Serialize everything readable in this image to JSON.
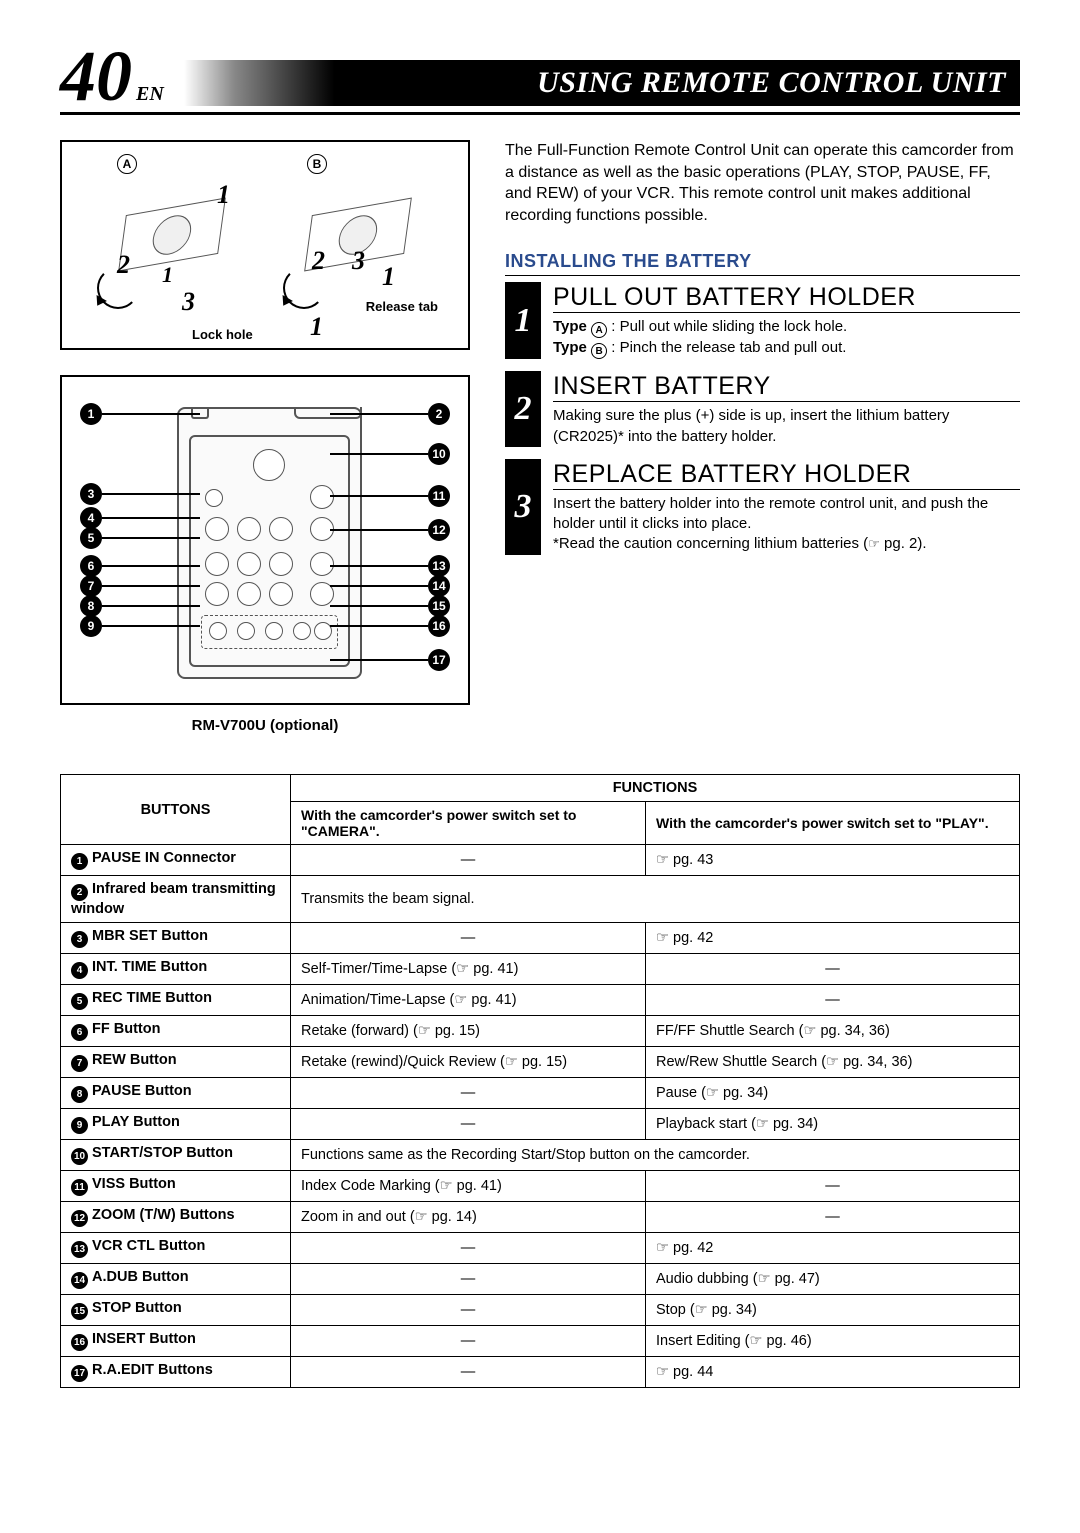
{
  "page_number": "40",
  "lang_tag": "EN",
  "banner_title": "USING REMOTE CONTROL UNIT",
  "model": "RM-V700U (optional)",
  "intro": "The Full-Function Remote Control Unit can operate this camcorder from a distance as well as the basic operations (PLAY, STOP, PAUSE, FF, and REW) of your VCR. This remote control unit makes additional recording functions possible.",
  "section_head": "INSTALLING THE BATTERY",
  "steps": [
    {
      "num": "1",
      "title": "PULL OUT BATTERY HOLDER",
      "text_parts": [
        {
          "b": true,
          "t": "Type "
        },
        {
          "circ": "A"
        },
        {
          "t": " : Pull out while sliding the lock hole."
        },
        {
          "br": true
        },
        {
          "b": true,
          "t": "Type "
        },
        {
          "circ": "B"
        },
        {
          "t": " : Pinch the release tab and pull out."
        }
      ]
    },
    {
      "num": "2",
      "title": "INSERT BATTERY",
      "text_parts": [
        {
          "t": "Making sure the plus (+) side is up, insert the lithium battery (CR2025)* into the battery holder."
        }
      ]
    },
    {
      "num": "3",
      "title": "REPLACE BATTERY HOLDER",
      "text_parts": [
        {
          "t": "Insert the battery holder into the remote control unit, and push the holder until it clicks into place."
        },
        {
          "br": true
        },
        {
          "t": "*Read the caution concerning lithium batteries ("
        },
        {
          "see": true
        },
        {
          "t": " pg. 2)."
        }
      ]
    }
  ],
  "top_diagram": {
    "ids": [
      "A",
      "B"
    ],
    "lock_label": "Lock hole",
    "release_label": "Release tab",
    "step_nums": [
      "1",
      "2",
      "3"
    ]
  },
  "callouts_left": [
    "1",
    "3",
    "4",
    "5",
    "6",
    "7",
    "8",
    "9"
  ],
  "callouts_right": [
    "2",
    "10",
    "11",
    "12",
    "13",
    "14",
    "15",
    "16",
    "17"
  ],
  "table": {
    "header_buttons": "BUTTONS",
    "header_functions": "FUNCTIONS",
    "sub_camera": "With the camcorder's power switch set to \"CAMERA\".",
    "sub_play": "With the camcorder's power switch set to \"PLAY\".",
    "rows": [
      {
        "n": "1",
        "name": "PAUSE IN Connector",
        "cam": "—",
        "play": "☞ pg. 43"
      },
      {
        "n": "2",
        "name": "Infrared beam transmitting window",
        "span": "Transmits the beam signal."
      },
      {
        "n": "3",
        "name": "MBR SET Button",
        "cam": "—",
        "play": "☞ pg. 42"
      },
      {
        "n": "4",
        "name": "INT. TIME Button",
        "cam": "Self-Timer/Time-Lapse (☞ pg. 41)",
        "play": "—"
      },
      {
        "n": "5",
        "name": "REC TIME Button",
        "cam": "Animation/Time-Lapse (☞ pg. 41)",
        "play": "—"
      },
      {
        "n": "6",
        "name": "FF Button",
        "cam": "Retake (forward) (☞ pg. 15)",
        "play": "FF/FF Shuttle Search (☞ pg. 34, 36)"
      },
      {
        "n": "7",
        "name": "REW Button",
        "cam": "Retake (rewind)/Quick Review (☞ pg. 15)",
        "play": "Rew/Rew Shuttle Search (☞ pg. 34, 36)"
      },
      {
        "n": "8",
        "name": "PAUSE Button",
        "cam": "—",
        "play": "Pause (☞ pg. 34)"
      },
      {
        "n": "9",
        "name": "PLAY Button",
        "cam": "—",
        "play": "Playback start (☞ pg. 34)"
      },
      {
        "n": "10",
        "name": "START/STOP Button",
        "span": "Functions same as the Recording Start/Stop button on the camcorder."
      },
      {
        "n": "11",
        "name": "VISS Button",
        "cam": "Index Code Marking (☞ pg. 41)",
        "play": "—"
      },
      {
        "n": "12",
        "name": "ZOOM (T/W) Buttons",
        "cam": "Zoom in and out (☞ pg. 14)",
        "play": "—"
      },
      {
        "n": "13",
        "name": "VCR CTL Button",
        "cam": "—",
        "play": "☞ pg. 42"
      },
      {
        "n": "14",
        "name": "A.DUB Button",
        "cam": "—",
        "play": "Audio dubbing (☞ pg. 47)"
      },
      {
        "n": "15",
        "name": "STOP Button",
        "cam": "—",
        "play": "Stop (☞ pg. 34)"
      },
      {
        "n": "16",
        "name": "INSERT Button",
        "cam": "—",
        "play": "Insert Editing (☞ pg. 46)"
      },
      {
        "n": "17",
        "name": "R.A.EDIT Buttons",
        "cam": "—",
        "play": "☞ pg. 44"
      }
    ]
  }
}
